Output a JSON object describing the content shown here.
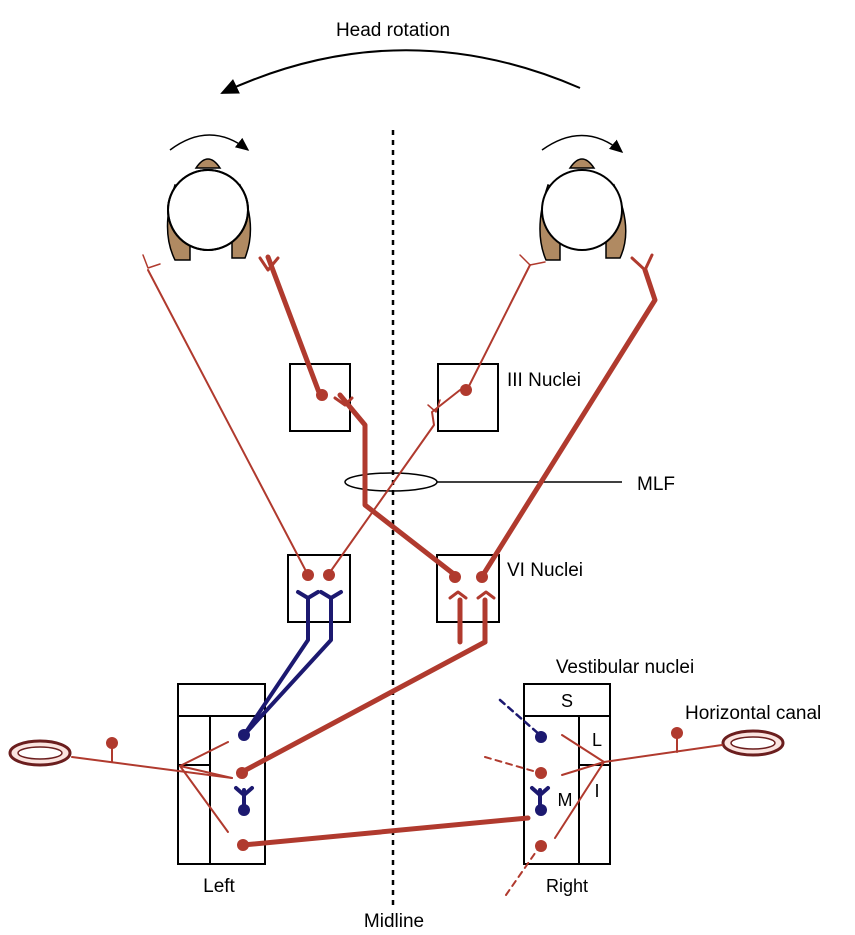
{
  "title": "Head rotation",
  "labels": {
    "iii_nuclei": "III Nuclei",
    "mlf": "MLF",
    "vi_nuclei": "VI Nuclei",
    "vestibular_nuclei": "Vestibular nuclei",
    "horizontal_canal": "Horizontal canal",
    "left": "Left",
    "right": "Right",
    "midline": "Midline",
    "s": "S",
    "l": "L",
    "m": "M",
    "i": "I"
  },
  "colors": {
    "excitatory": "#b03a2e",
    "inhibitory": "#1c1970",
    "hair": "#b08a62",
    "canal_fill": "#fbe4e0"
  }
}
